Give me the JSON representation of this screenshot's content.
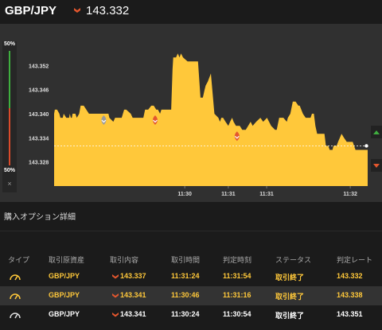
{
  "header": {
    "pair": "GBP/JPY",
    "price": "143.332",
    "direction_icon": "down-arrow-icon"
  },
  "level": {
    "top": "50%",
    "bottom": "50%",
    "close": "×"
  },
  "chart_data": {
    "type": "area",
    "title": "",
    "xlabel": "",
    "ylabel": "",
    "ylim": [
      143.322,
      143.358
    ],
    "xlim": [
      "11:29:00",
      "11:32:00"
    ],
    "yticks": [
      "143.352",
      "143.346",
      "143.340",
      "143.334",
      "143.328"
    ],
    "xticks": [
      "11:30",
      "11:31",
      "11:31",
      "11:32"
    ],
    "series": [
      {
        "x": [
          0,
          0.4,
          1.7,
          3.0,
          3.6,
          4.2,
          5.0,
          5.5,
          7.0,
          8.6,
          9.0,
          9.6,
          10.2,
          10.6,
          12.2,
          13.0,
          14.4,
          15.2,
          16.0,
          17.0,
          20.0,
          24.4,
          25.4,
          26.2,
          28.0,
          28.4,
          30.0,
          31.2,
          31.7,
          34.0,
          35.0,
          36.0,
          38.0,
          38.8,
          40.2,
          41.4,
          44.0,
          45.1,
          48.0,
          51.2,
          52.2,
          54.0,
          55.8,
          57.2,
          58.6,
          59.6,
          60.8,
          61.6,
          64.0,
          67.2,
          68.0,
          68.4,
          70.0,
          71.0,
          72.0,
          72.8,
          74.0,
          76.6,
          77.7,
          78.6,
          80.4,
          81.4,
          82.6,
          84.0,
          84.6,
          85.4,
          86.4,
          87.0,
          88.2,
          90.0,
          92.0,
          94.3,
          95.2,
          96.0,
          97.0,
          98.4,
          100.0,
          101.0,
          102.2,
          103.0,
          104.4,
          106.6,
          108.0,
          110.0,
          112.8,
          114.0,
          116.0,
          118.4,
          120.0,
          122.2,
          124.6,
          126.8,
          127.8,
          129.2,
          131.6,
          133.6,
          134.2,
          135.6,
          137.0,
          137.4,
          138.0,
          138.6,
          140.2,
          141.0,
          142.8,
          144.4,
          146.2,
          147.2,
          148.0,
          149.1,
          150.0,
          151.0,
          151.6,
          152.8,
          155.2,
          156.0,
          157.4,
          158.2,
          159.8,
          160.4,
          161.6,
          162.2,
          163.0,
          165.0,
          166.4,
          168.0,
          170.0,
          171.4,
          173.0,
          176.0,
          177.2,
          179.3,
          180.0
        ],
        "y": [
          143.34,
          143.341,
          143.341,
          143.34,
          143.339,
          143.339,
          143.339,
          143.34,
          143.339,
          143.339,
          143.34,
          143.339,
          143.339,
          143.34,
          143.34,
          143.339,
          143.34,
          143.342,
          143.342,
          143.342,
          143.34,
          143.34,
          143.34,
          143.34,
          143.34,
          143.34,
          143.34,
          143.34,
          143.339,
          143.338,
          143.339,
          143.339,
          143.339,
          143.339,
          143.341,
          143.341,
          143.34,
          143.339,
          143.339,
          143.339,
          143.341,
          143.341,
          143.342,
          143.342,
          143.341,
          143.341,
          143.34,
          143.341,
          143.341,
          143.341,
          143.351,
          143.354,
          143.354,
          143.355,
          143.354,
          143.355,
          143.354,
          143.353,
          143.353,
          143.353,
          143.353,
          143.353,
          143.353,
          143.344,
          143.344,
          143.344,
          143.346,
          143.347,
          143.348,
          143.35,
          143.34,
          143.339,
          143.338,
          143.339,
          143.339,
          143.338,
          143.337,
          143.338,
          143.339,
          143.338,
          143.337,
          143.337,
          143.336,
          143.336,
          143.338,
          143.337,
          143.338,
          143.339,
          143.338,
          143.339,
          143.337,
          143.336,
          143.336,
          143.339,
          143.339,
          143.338,
          143.339,
          143.34,
          143.343,
          143.343,
          143.343,
          143.343,
          143.342,
          143.342,
          143.34,
          143.339,
          143.339,
          143.339,
          143.34,
          143.34,
          143.337,
          143.335,
          143.335,
          143.335,
          143.335,
          143.332,
          143.332,
          143.331,
          143.331,
          143.332,
          143.332,
          143.332,
          143.333,
          143.335,
          143.334,
          143.333,
          143.333,
          143.333,
          143.331,
          143.331,
          143.331,
          143.331,
          143.331
        ]
      }
    ],
    "current_price": 143.332,
    "markers": [
      {
        "time": 28.5,
        "price": 143.339,
        "color": "#9a9a9a"
      },
      {
        "time": 58.0,
        "price": 143.339,
        "color": "#e4572e"
      },
      {
        "time": 105.0,
        "price": 143.335,
        "color": "#e4572e"
      }
    ]
  },
  "section_title": "購入オプション詳細",
  "table": {
    "headers": [
      "タイプ",
      "取引原資産",
      "取引内容",
      "取引時間",
      "判定時刻",
      "ステータス",
      "判定レート"
    ],
    "rows": [
      {
        "asset": "GBP/JPY",
        "rate": "143.337",
        "time": "11:31:24",
        "judge": "11:31:54",
        "status": "取引終了",
        "final": "143.332",
        "text_color": "#ffc83a"
      },
      {
        "asset": "GBP/JPY",
        "rate": "143.341",
        "time": "11:30:46",
        "judge": "11:31:16",
        "status": "取引終了",
        "final": "143.338",
        "text_color": "#ffc83a"
      },
      {
        "asset": "GBP/JPY",
        "rate": "143.341",
        "time": "11:30:24",
        "judge": "11:30:54",
        "status": "取引終了",
        "final": "143.351",
        "text_color": "#ffffff"
      }
    ]
  },
  "colors": {
    "accent": "#ffc83a",
    "down": "#e4572e",
    "up": "#3fae3f"
  }
}
